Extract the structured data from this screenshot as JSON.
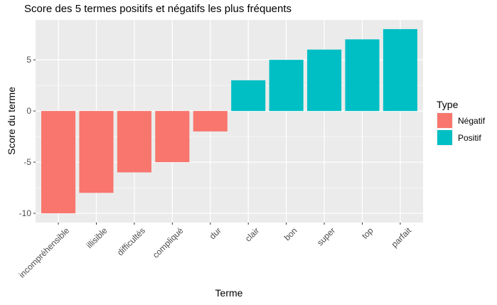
{
  "chart_data": {
    "type": "bar",
    "title": "Score des 5 termes positifs et négatifs les plus fréquents",
    "xlabel": "Terme",
    "ylabel": "Score du terme",
    "categories": [
      "incompréhensible",
      "illisible",
      "difficultés",
      "compliqué",
      "dur",
      "clair",
      "bon",
      "super",
      "top",
      "parfait"
    ],
    "values": [
      -10,
      -8,
      -6,
      -5,
      -2,
      3,
      5,
      6,
      7,
      8
    ],
    "types": [
      "Négatif",
      "Négatif",
      "Négatif",
      "Négatif",
      "Négatif",
      "Positif",
      "Positif",
      "Positif",
      "Positif",
      "Positif"
    ],
    "ylim": [
      -10.9,
      8.9
    ],
    "yticks": [
      -10,
      -5,
      0,
      5
    ],
    "grid": true,
    "legend": {
      "title": "Type",
      "position": "right",
      "entries": [
        {
          "name": "Négatif",
          "color": "#F8766D"
        },
        {
          "name": "Positif",
          "color": "#00BFC4"
        }
      ]
    }
  }
}
